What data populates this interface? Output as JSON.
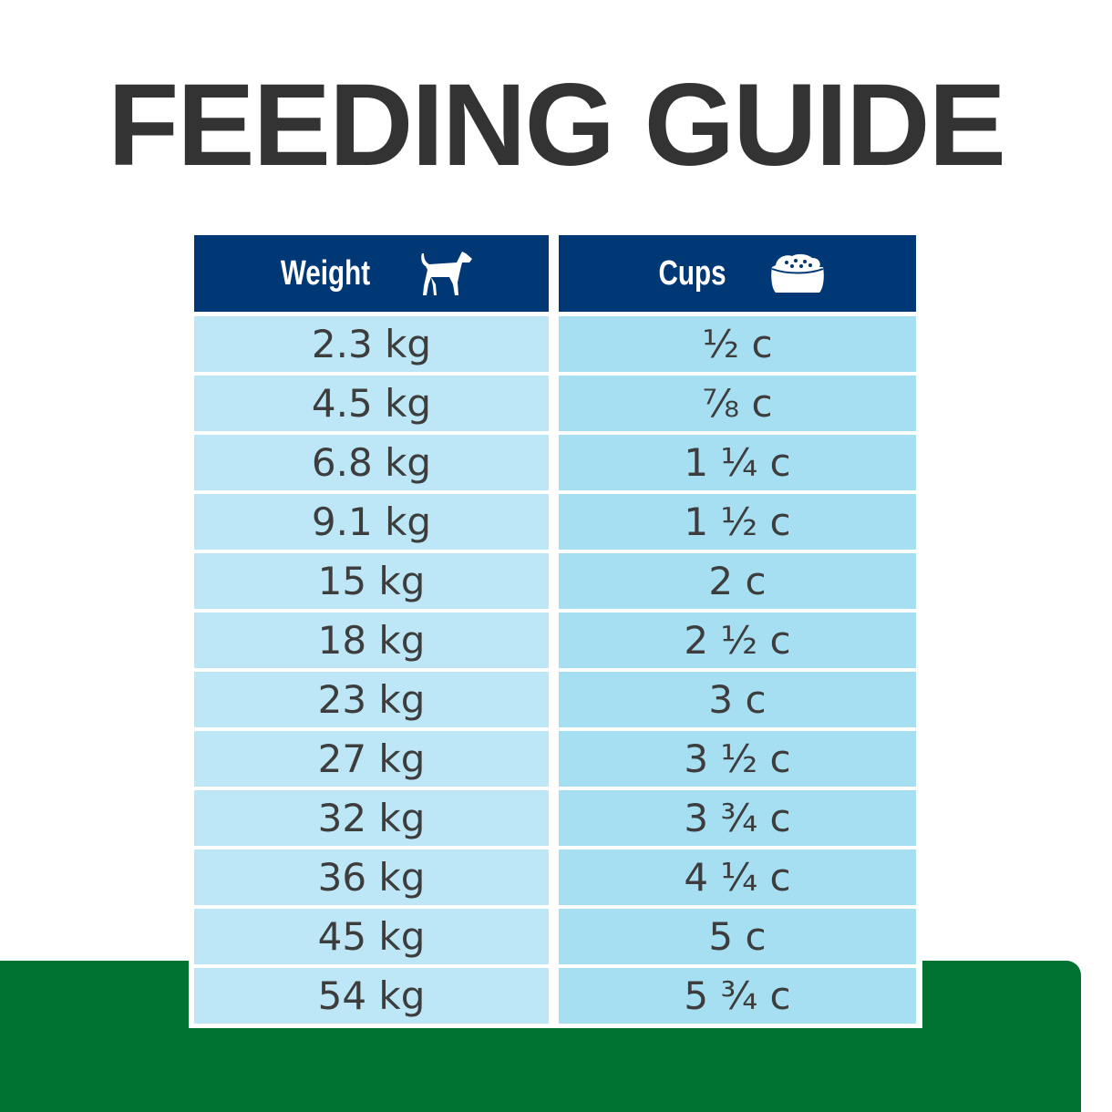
{
  "title": "FEEDING GUIDE",
  "table": {
    "headers": {
      "weight": "Weight",
      "cups": "Cups",
      "weight_icon": "dog-icon",
      "cups_icon": "food-bowl-icon"
    },
    "rows": [
      {
        "weight": "2.3 kg",
        "cups": "½ c"
      },
      {
        "weight": "4.5 kg",
        "cups": "⅞ c"
      },
      {
        "weight": "6.8 kg",
        "cups": "1 ¼ c"
      },
      {
        "weight": "9.1 kg",
        "cups": "1 ½ c"
      },
      {
        "weight": "15 kg",
        "cups": "2 c"
      },
      {
        "weight": "18 kg",
        "cups": "2 ½ c"
      },
      {
        "weight": "23 kg",
        "cups": "3 c"
      },
      {
        "weight": "27 kg",
        "cups": "3 ½ c"
      },
      {
        "weight": "32 kg",
        "cups": "3 ¾ c"
      },
      {
        "weight": "36 kg",
        "cups": "4 ¼ c"
      },
      {
        "weight": "45 kg",
        "cups": "5 c"
      },
      {
        "weight": "54 kg",
        "cups": "5 ¾ c"
      }
    ]
  },
  "colors": {
    "header": "#003775",
    "row_left": "#bde7f6",
    "row_right": "#a6dff2",
    "green_band": "#007333",
    "title": "#333333"
  }
}
